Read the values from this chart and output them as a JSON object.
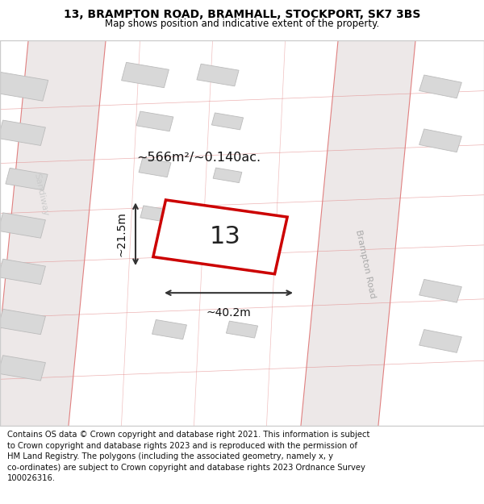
{
  "title": "13, BRAMPTON ROAD, BRAMHALL, STOCKPORT, SK7 3BS",
  "subtitle": "Map shows position and indicative extent of the property.",
  "footer_line1": "Contains OS data © Crown copyright and database right 2021. This information is subject",
  "footer_line2": "to Crown copyright and database rights 2023 and is reproduced with the permission of",
  "footer_line3": "HM Land Registry. The polygons (including the associated geometry, namely x, y",
  "footer_line4": "co-ordinates) are subject to Crown copyright and database rights 2023 Ordnance Survey",
  "footer_line5": "100026316.",
  "area_label": "~566m²/~0.140ac.",
  "width_label": "~40.2m",
  "height_label": "~21.5m",
  "number_label": "13",
  "plot_edge_color": "#cc0000",
  "plot_fill_color": "#ffffff",
  "dim_color": "#333333",
  "road_fill": "#ede8e8",
  "road_edge": "#e08080",
  "building_fill": "#d8d8d8",
  "building_edge": "#bbbbbb",
  "map_bg": "#f9f6f6",
  "street_label_brampton": "Brampton Road",
  "street_label_sandiway": "Sandiway"
}
